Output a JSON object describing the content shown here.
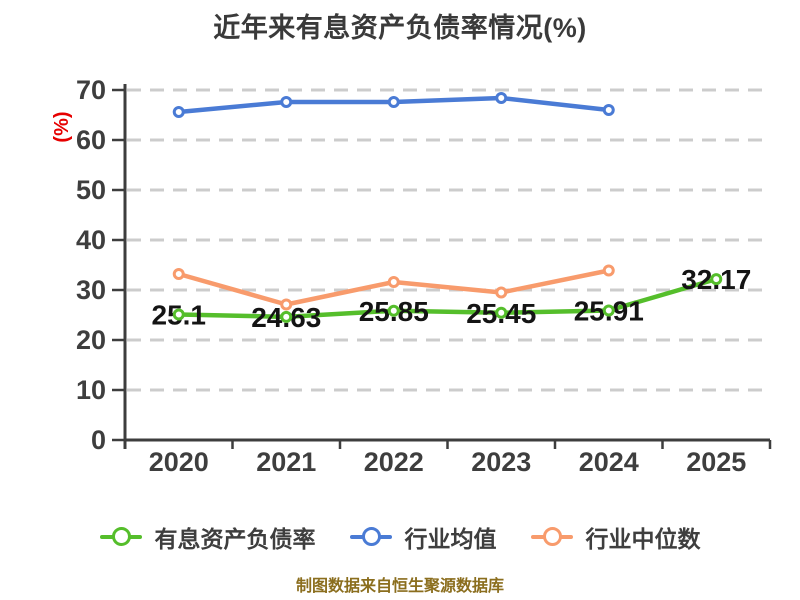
{
  "title": "近年来有息资产负债率情况(%)",
  "y_axis_unit": "(%)",
  "footer": "制图数据来自恒生聚源数据库",
  "colors": {
    "title_text": "#3A3A3A",
    "axis_text": "#3E3E3E",
    "axis_line": "#3D3D3D",
    "grid_line": "#CCCCCC",
    "value_label": "#141414",
    "y_axis_unit": "#E60000",
    "footer_text": "#8B6E1E",
    "marker_fill": "#FFFFFF"
  },
  "chart_data": {
    "type": "line",
    "title": "近年来有息资产负债率情况(%)",
    "categories": [
      "2020",
      "2021",
      "2022",
      "2023",
      "2024",
      "2025"
    ],
    "series": [
      {
        "name": "有息资产负债率",
        "color": "#55BE2B",
        "values": [
          25.1,
          24.63,
          25.85,
          25.45,
          25.91,
          32.17
        ],
        "data_labels": true
      },
      {
        "name": "行业均值",
        "color": "#4A7BD5",
        "values": [
          65.6,
          67.6,
          67.6,
          68.4,
          66.0,
          null
        ],
        "data_labels": false
      },
      {
        "name": "行业中位数",
        "color": "#F89B6C",
        "values": [
          33.2,
          27.1,
          31.6,
          29.5,
          33.9,
          null
        ],
        "data_labels": false
      }
    ],
    "ylabel": "(%)",
    "xlabel": "",
    "ylim": [
      0,
      70
    ],
    "yticks": [
      0,
      10,
      20,
      30,
      40,
      50,
      60,
      70
    ],
    "grid": "horizontal-dashed",
    "legend_position": "bottom",
    "source_note": "制图数据来自恒生聚源数据库"
  }
}
